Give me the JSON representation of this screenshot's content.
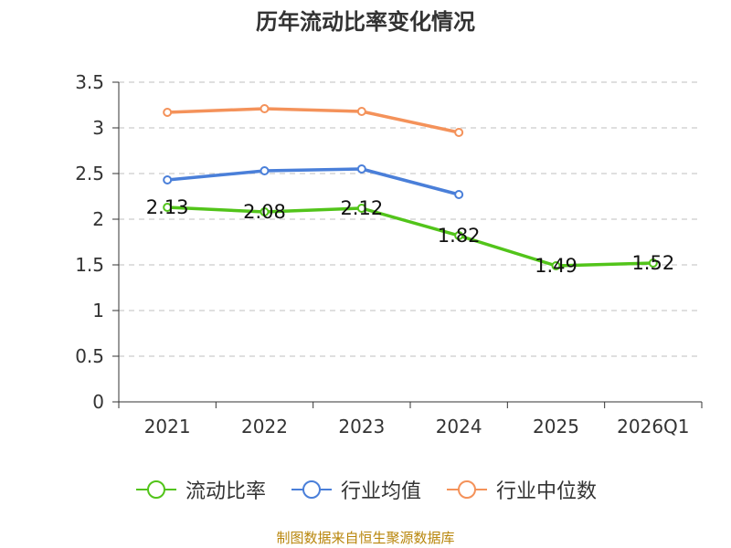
{
  "chart_data": {
    "type": "line",
    "title": "历年流动比率变化情况",
    "categories": [
      "2021",
      "2022",
      "2023",
      "2024",
      "2025",
      "2026Q1"
    ],
    "ylim": [
      0,
      3.5
    ],
    "yticks": [
      "0",
      "0.5",
      "1",
      "1.5",
      "2",
      "2.5",
      "3",
      "3.5"
    ],
    "grid": true,
    "legend_position": "bottom",
    "series": [
      {
        "name": "流动比率",
        "color": "#52c41a",
        "values": [
          2.13,
          2.08,
          2.12,
          1.82,
          1.49,
          1.52
        ],
        "labels": [
          "2.13",
          "2.08",
          "2.12",
          "1.82",
          "1.49",
          "1.52"
        ],
        "show_labels": true
      },
      {
        "name": "行业均值",
        "color": "#4a7fd9",
        "values": [
          2.43,
          2.53,
          2.55,
          2.27,
          null,
          null
        ],
        "show_labels": false
      },
      {
        "name": "行业中位数",
        "color": "#f4925a",
        "values": [
          3.17,
          3.21,
          3.18,
          2.95,
          null,
          null
        ],
        "show_labels": false
      }
    ]
  },
  "source_note": "制图数据来自恒生聚源数据库"
}
